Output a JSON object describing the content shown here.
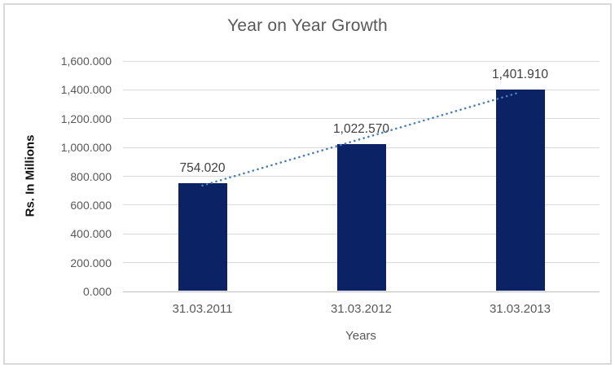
{
  "chart_data": {
    "type": "bar",
    "title": "Year on Year Growth",
    "xlabel": "Years",
    "ylabel": "Rs. In Millions",
    "categories": [
      "31.03.2011",
      "31.03.2012",
      "31.03.2013"
    ],
    "values": [
      754.02,
      1022.57,
      1401.91
    ],
    "value_labels": [
      "754.020",
      "1,022.570",
      "1,401.910"
    ],
    "y_tick_values": [
      0,
      200,
      400,
      600,
      800,
      1000,
      1200,
      1400,
      1600
    ],
    "y_ticks": [
      "0.000",
      "200.000",
      "400.000",
      "600.000",
      "800.000",
      "1,000.000",
      "1,200.000",
      "1,400.000",
      "1,600.000"
    ],
    "ylim": [
      0,
      1600
    ],
    "grid": true,
    "legend": "none",
    "trendline": {
      "kind": "linear",
      "style": "dotted"
    },
    "colors": {
      "bar": "#0b2265",
      "trendline": "#4a7ebb",
      "gridline": "#d9d9d9",
      "axis_line": "#bfbfbf",
      "title_text": "#595959",
      "tick_text": "#595959",
      "data_label_text": "#404040",
      "y_axis_title_text": "#111111",
      "border": "#d9d9d9",
      "background": "#ffffff"
    }
  }
}
